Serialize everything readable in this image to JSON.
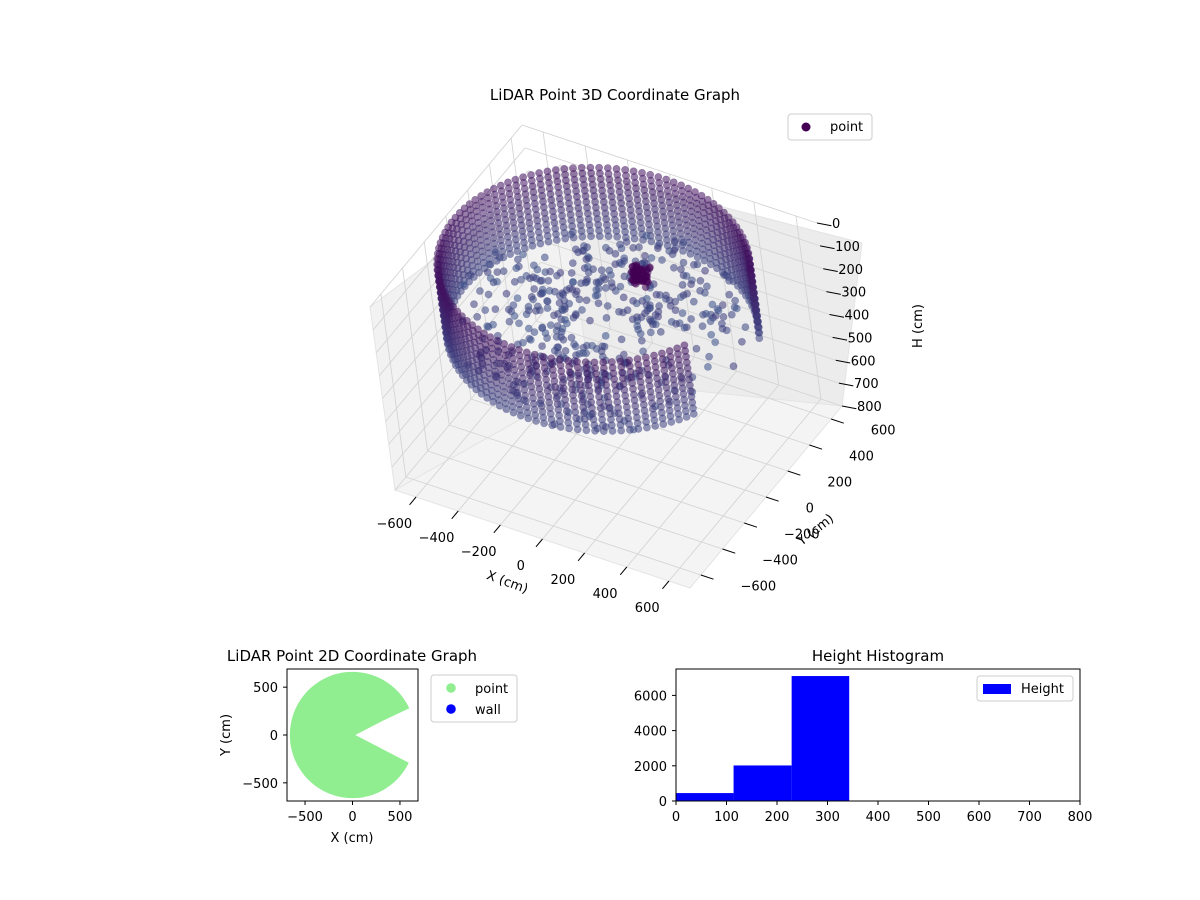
{
  "chart_data": [
    {
      "type": "scatter",
      "projection": "3d",
      "title": "LiDAR Point 3D Coordinate Graph",
      "xlabel": "X (cm)",
      "ylabel": "Y (cm)",
      "zlabel": "H (cm)",
      "xlim": [
        -700,
        700
      ],
      "ylim": [
        -700,
        700
      ],
      "zlim": [
        800,
        0
      ],
      "xticks": [
        "−600",
        "−400",
        "−200",
        "0",
        "200",
        "400",
        "600"
      ],
      "yticks": [
        "−600",
        "−400",
        "−200",
        "0",
        "200",
        "400",
        "600"
      ],
      "zticks": [
        "0",
        "100",
        "200",
        "300",
        "400",
        "500",
        "600",
        "700",
        "800"
      ],
      "legend": {
        "position": "top-right",
        "entries": [
          {
            "label": "point",
            "color": "#440154"
          }
        ]
      },
      "colormap": "viridis",
      "series": [
        {
          "name": "point",
          "description_shape": "ring of points along a circular wall, radius about 660 cm, heights 0 to about 300 cm, with an opening on the +X side",
          "ring_radius": 660,
          "height_range": [
            0,
            300
          ],
          "opening_angles_deg": [
            -25,
            25
          ],
          "clusters": [
            {
              "x": 120,
              "y": 180,
              "h": 110
            },
            {
              "x": 60,
              "y": 230,
              "h": 150
            }
          ],
          "outlier": {
            "x": -500,
            "y": 100,
            "h": 800
          }
        }
      ]
    },
    {
      "type": "scatter",
      "title": "LiDAR Point 2D Coordinate Graph",
      "xlabel": "X (cm)",
      "ylabel": "Y (cm)",
      "xlim": [
        -690,
        690
      ],
      "ylim": [
        -690,
        690
      ],
      "xticks": [
        "−500",
        "0",
        "500"
      ],
      "yticks": [
        "−500",
        "0",
        "500"
      ],
      "legend": {
        "position": "outside-right",
        "entries": [
          {
            "label": "point",
            "color": "#90ee90"
          },
          {
            "label": "wall",
            "color": "#0000ff"
          }
        ]
      },
      "series": [
        {
          "name": "point",
          "color": "#90ee90",
          "radius": 660,
          "opening_angles_deg": [
            -25,
            25
          ],
          "notch_depth": 330
        },
        {
          "name": "wall",
          "color": "#0000ff"
        }
      ]
    },
    {
      "type": "bar",
      "subtype": "histogram",
      "title": "Height Histogram",
      "xlim": [
        0,
        800
      ],
      "ylim": [
        0,
        7500
      ],
      "xticks": [
        "0",
        "100",
        "200",
        "300",
        "400",
        "500",
        "600",
        "700",
        "800"
      ],
      "yticks": [
        "0",
        "2000",
        "4000",
        "6000"
      ],
      "legend": {
        "position": "top-right",
        "entries": [
          {
            "label": "Height",
            "color": "#0000ff"
          }
        ]
      },
      "bins": [
        {
          "start": 0,
          "end": 114,
          "count": 450
        },
        {
          "start": 114,
          "end": 229,
          "count": 2020
        },
        {
          "start": 229,
          "end": 343,
          "count": 7100
        }
      ],
      "color": "#0000ff"
    }
  ]
}
